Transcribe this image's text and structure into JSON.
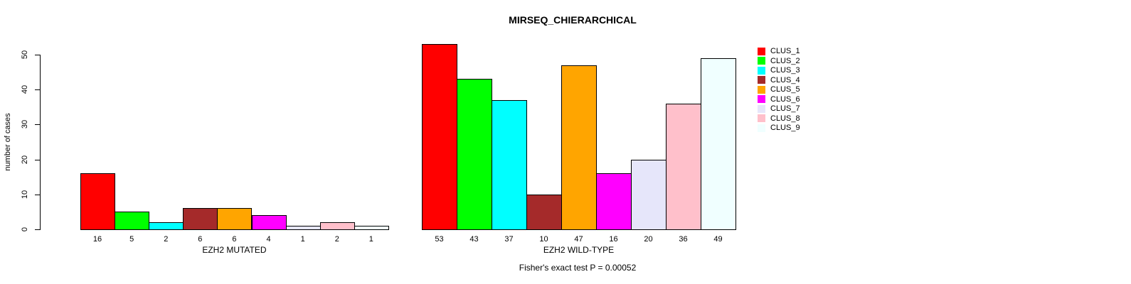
{
  "chart_data": {
    "type": "bar",
    "title": "MIRSEQ_CHIERARCHICAL",
    "ylabel": "number of cases",
    "ylim": [
      0,
      50
    ],
    "yticks": [
      0,
      10,
      20,
      30,
      40,
      50
    ],
    "grid": false,
    "legend_position": "right",
    "groups": [
      {
        "label": "EZH2 MUTATED",
        "values": [
          16,
          5,
          2,
          6,
          6,
          4,
          1,
          2,
          1
        ]
      },
      {
        "label": "EZH2 WILD-TYPE",
        "values": [
          53,
          43,
          37,
          10,
          47,
          16,
          20,
          36,
          49
        ]
      }
    ],
    "series": [
      {
        "name": "CLUS_1",
        "color": "#FF0000"
      },
      {
        "name": "CLUS_2",
        "color": "#00FF00"
      },
      {
        "name": "CLUS_3",
        "color": "#00FFFF"
      },
      {
        "name": "CLUS_4",
        "color": "#A52A2A"
      },
      {
        "name": "CLUS_5",
        "color": "#FFA500"
      },
      {
        "name": "CLUS_6",
        "color": "#FF00FF"
      },
      {
        "name": "CLUS_7",
        "color": "#E6E6FA"
      },
      {
        "name": "CLUS_8",
        "color": "#FFC0CB"
      },
      {
        "name": "CLUS_9",
        "color": "#F0FFFF"
      }
    ],
    "annotation": "Fisher's exact test P = 0.00052"
  }
}
